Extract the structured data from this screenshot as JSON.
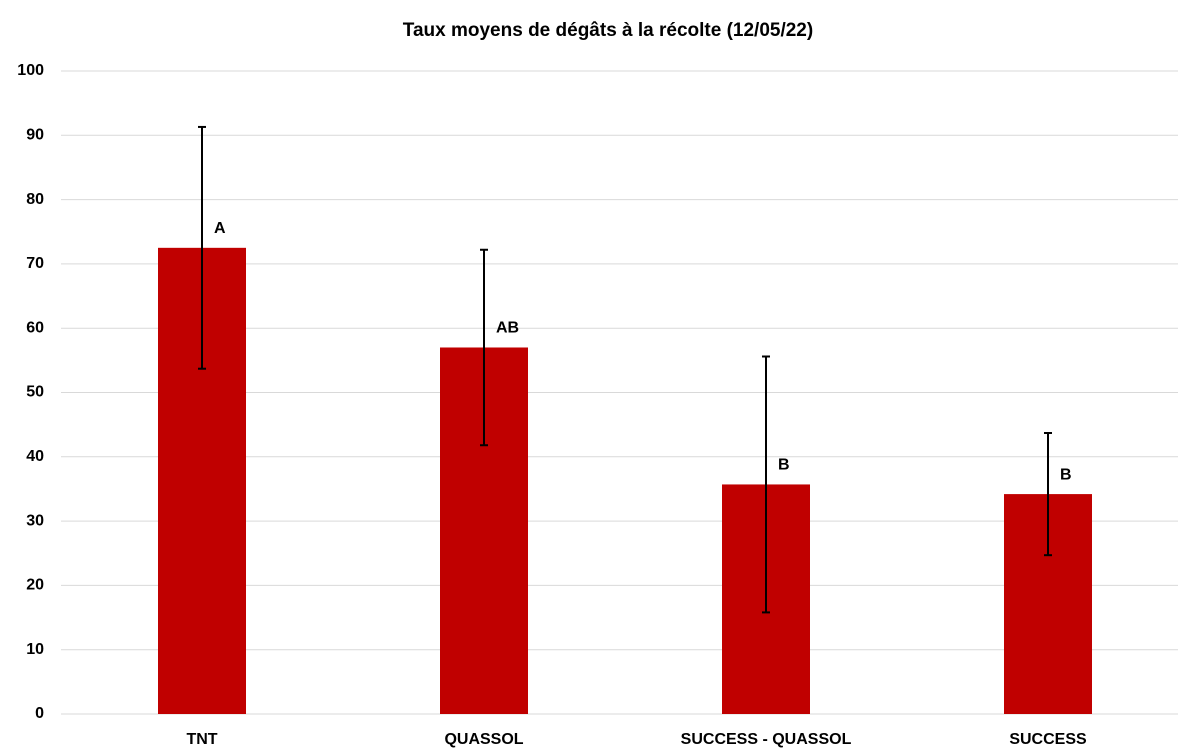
{
  "chart_data": {
    "type": "bar",
    "title": "Taux moyens de dégâts à la récolte (12/05/22)",
    "categories": [
      "TNT",
      "QUASSOL",
      "SUCCESS - QUASSOL",
      "SUCCESS"
    ],
    "values": [
      72.5,
      57,
      35.7,
      34.2
    ],
    "errors": [
      18.8,
      15.2,
      19.9,
      9.5
    ],
    "annotations": [
      "A",
      "AB",
      "B",
      "B"
    ],
    "color": "#c00000",
    "ylim": [
      0,
      100
    ],
    "yticks": [
      0,
      10,
      20,
      30,
      40,
      50,
      60,
      70,
      80,
      90,
      100
    ],
    "grid": true
  }
}
